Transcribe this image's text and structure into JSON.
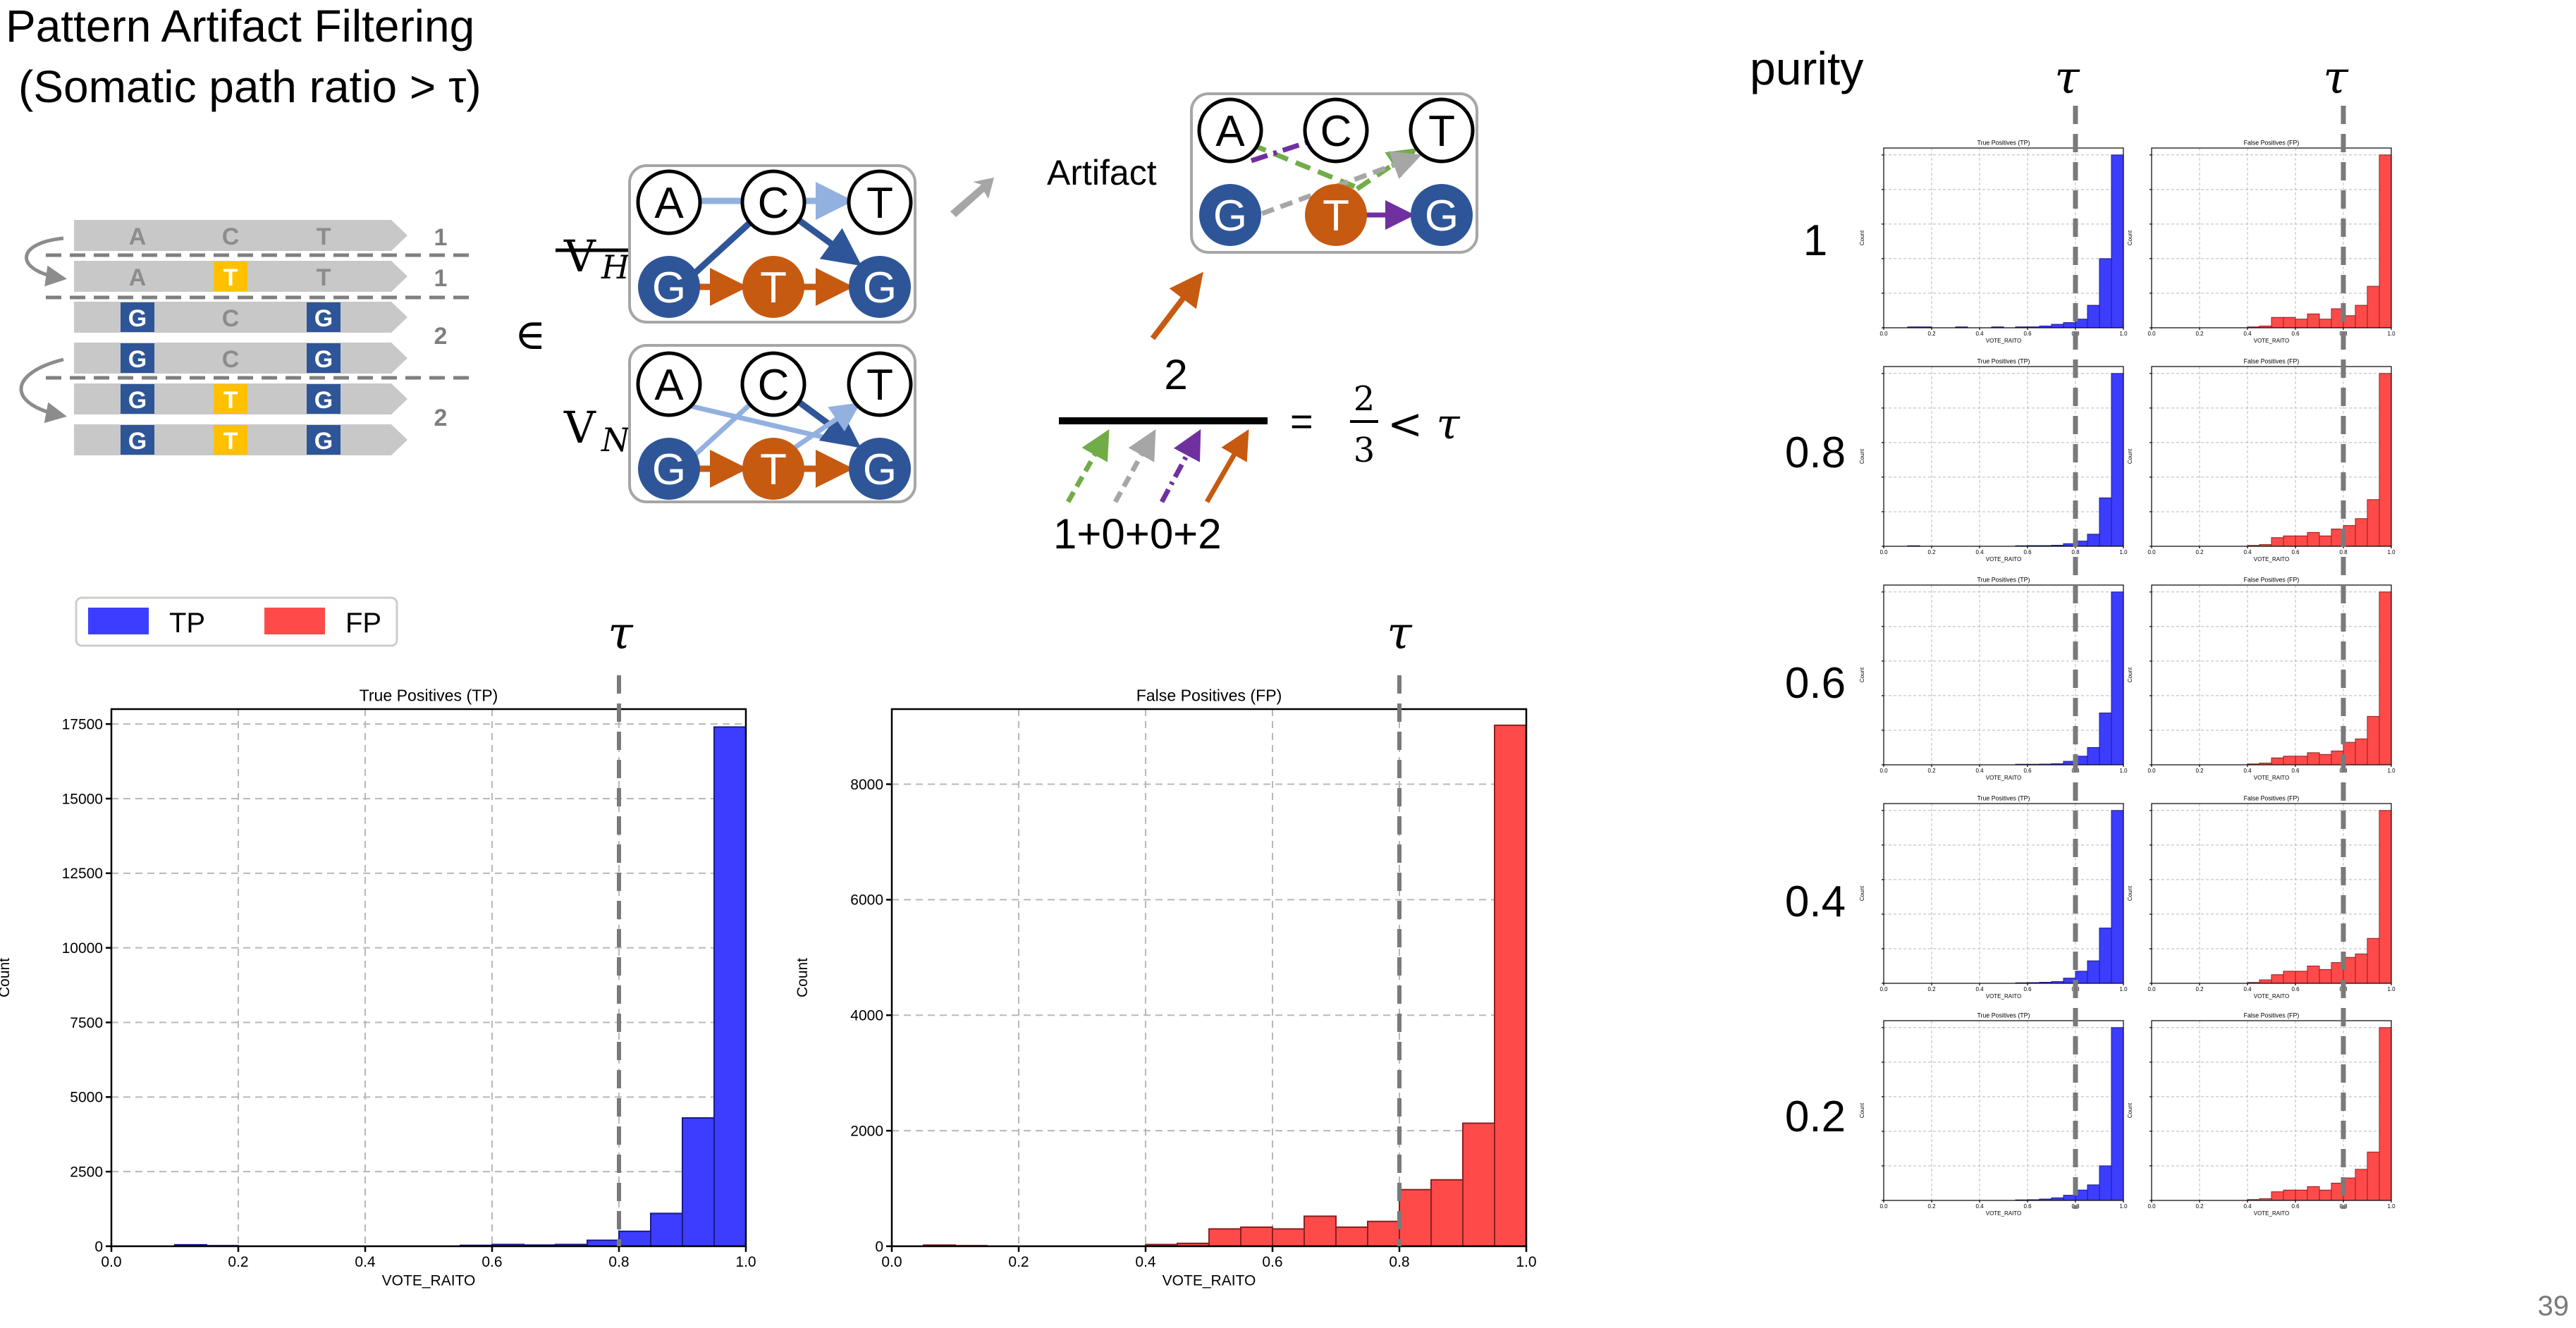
{
  "slide": {
    "title_line1": "Pattern Artifact Filtering",
    "title_line2": "(Somatic path ratio > τ)",
    "slide_number": "39"
  },
  "reads": {
    "rows": [
      {
        "cells": [
          "A",
          "C",
          "T"
        ],
        "highlight": [
          false,
          false,
          false
        ],
        "blue": [
          false,
          false,
          false
        ],
        "count": "1"
      },
      {
        "cells": [
          "A",
          "T",
          "T"
        ],
        "highlight": [
          false,
          true,
          false
        ],
        "blue": [
          false,
          false,
          false
        ],
        "count": "1"
      },
      {
        "cells": [
          "G",
          "C",
          "G"
        ],
        "highlight": [
          false,
          false,
          false
        ],
        "blue": [
          true,
          false,
          true
        ],
        "count": "2"
      },
      {
        "cells": [
          "G",
          "C",
          "G"
        ],
        "highlight": [
          false,
          false,
          false
        ],
        "blue": [
          true,
          false,
          true
        ],
        "count": ""
      },
      {
        "cells": [
          "G",
          "T",
          "G"
        ],
        "highlight": [
          false,
          true,
          false
        ],
        "blue": [
          true,
          false,
          true
        ],
        "count": "2"
      },
      {
        "cells": [
          "G",
          "T",
          "G"
        ],
        "highlight": [
          false,
          true,
          false
        ],
        "blue": [
          true,
          false,
          true
        ],
        "count": ""
      }
    ]
  },
  "graphs": {
    "element_of": "∈",
    "vh_label": "V",
    "vh_sub": "H",
    "vn_label": "V",
    "vn_sub": "N",
    "top_nodes": [
      "A",
      "C",
      "T"
    ],
    "bottom_nodes": [
      "G",
      "T",
      "G"
    ],
    "artifact_label": "Artifact",
    "artifact_top": [
      "A",
      "C",
      "T"
    ],
    "artifact_bottom": [
      "G",
      "T",
      "G"
    ],
    "numerator": "2",
    "denominator": "1+0+0+2",
    "equals": "=",
    "frac_num": "2",
    "frac_den": "3",
    "less_tau": "< τ"
  },
  "colors": {
    "tp": "#3d3dff",
    "fp": "#ff4a4a",
    "node_blue": "#2e5597",
    "node_orange": "#c65a11",
    "light_blue": "#93b1df",
    "green": "#70ad47",
    "gray": "#a6a6a6",
    "purple": "#7030a0",
    "yellow": "#ffc000"
  },
  "legend": {
    "tp": "TP",
    "fp": "FP"
  },
  "tau_symbol": "τ",
  "chart_data": [
    {
      "type": "bar",
      "title": "True Positives (TP)",
      "xlabel": "VOTE_RAITO",
      "ylabel": "Count",
      "bin_edges": [
        0,
        0.05,
        0.1,
        0.15,
        0.2,
        0.25,
        0.3,
        0.35,
        0.4,
        0.45,
        0.5,
        0.55,
        0.6,
        0.65,
        0.7,
        0.75,
        0.8,
        0.85,
        0.9,
        0.95,
        1.0
      ],
      "values": [
        0,
        0,
        50,
        20,
        0,
        0,
        0,
        0,
        0,
        0,
        0,
        30,
        60,
        40,
        60,
        200,
        500,
        1100,
        4300,
        17400
      ],
      "xlim": [
        0,
        1
      ],
      "ylim": [
        0,
        18000
      ],
      "xticks": [
        "0.0",
        "0.2",
        "0.4",
        "0.6",
        "0.8",
        "1.0"
      ],
      "yticks": [
        "0",
        "2500",
        "5000",
        "7500",
        "10000",
        "12500",
        "15000",
        "17500"
      ],
      "threshold": 0.8,
      "grid": true
    },
    {
      "type": "bar",
      "title": "False Positives (FP)",
      "xlabel": "VOTE_RAITO",
      "ylabel": "Count",
      "bin_edges": [
        0,
        0.05,
        0.1,
        0.15,
        0.2,
        0.25,
        0.3,
        0.35,
        0.4,
        0.45,
        0.5,
        0.55,
        0.6,
        0.65,
        0.7,
        0.75,
        0.8,
        0.85,
        0.9,
        0.95,
        1.0
      ],
      "values": [
        0,
        20,
        10,
        0,
        0,
        0,
        0,
        0,
        30,
        50,
        300,
        330,
        300,
        520,
        330,
        430,
        980,
        1150,
        2130,
        9020
      ],
      "xlim": [
        0,
        1
      ],
      "ylim": [
        0,
        9300
      ],
      "xticks": [
        "0.0",
        "0.2",
        "0.4",
        "0.6",
        "0.8",
        "1.0"
      ],
      "yticks": [
        "0",
        "2000",
        "4000",
        "6000",
        "8000"
      ],
      "threshold": 0.8,
      "grid": true
    }
  ],
  "purity_grid": {
    "header": "purity",
    "rows": [
      "1",
      "0.8",
      "0.6",
      "0.4",
      "0.2"
    ],
    "tp_title": "True Positives (TP)",
    "fp_title": "False Positives (FP)",
    "tp_profiles": [
      [
        0,
        0,
        0.005,
        0.005,
        0,
        0,
        0.005,
        0,
        0,
        0.005,
        0,
        0.005,
        0.005,
        0.01,
        0.02,
        0.03,
        0.05,
        0.13,
        0.4,
        1.0
      ],
      [
        0,
        0,
        0.003,
        0,
        0,
        0,
        0,
        0,
        0,
        0,
        0,
        0.003,
        0.004,
        0.004,
        0.006,
        0.015,
        0.03,
        0.07,
        0.28,
        1.0
      ],
      [
        0,
        0,
        0,
        0,
        0,
        0,
        0,
        0,
        0,
        0,
        0,
        0.003,
        0.003,
        0.004,
        0.006,
        0.02,
        0.05,
        0.1,
        0.3,
        1.0
      ],
      [
        0,
        0,
        0,
        0,
        0,
        0,
        0,
        0,
        0,
        0,
        0,
        0.003,
        0.004,
        0.006,
        0.01,
        0.03,
        0.07,
        0.13,
        0.32,
        1.0
      ],
      [
        0,
        0,
        0,
        0,
        0,
        0,
        0,
        0,
        0,
        0,
        0,
        0.003,
        0.004,
        0.008,
        0.015,
        0.03,
        0.06,
        0.09,
        0.2,
        1.0
      ]
    ],
    "fp_profiles": [
      [
        0,
        0,
        0,
        0,
        0,
        0,
        0,
        0,
        0.005,
        0.01,
        0.06,
        0.06,
        0.05,
        0.08,
        0.05,
        0.11,
        0.07,
        0.13,
        0.24,
        1.0
      ],
      [
        0,
        0,
        0,
        0,
        0,
        0,
        0,
        0,
        0.005,
        0.01,
        0.05,
        0.06,
        0.06,
        0.08,
        0.06,
        0.1,
        0.12,
        0.16,
        0.27,
        1.0
      ],
      [
        0,
        0,
        0,
        0,
        0,
        0,
        0,
        0,
        0.005,
        0.01,
        0.04,
        0.05,
        0.05,
        0.07,
        0.06,
        0.08,
        0.13,
        0.15,
        0.28,
        1.0
      ],
      [
        0,
        0,
        0,
        0,
        0,
        0,
        0,
        0,
        0.005,
        0.02,
        0.05,
        0.07,
        0.07,
        0.1,
        0.08,
        0.12,
        0.15,
        0.17,
        0.26,
        1.0
      ],
      [
        0,
        0,
        0,
        0,
        0,
        0,
        0,
        0,
        0.005,
        0.01,
        0.05,
        0.06,
        0.06,
        0.08,
        0.06,
        0.1,
        0.13,
        0.18,
        0.28,
        1.0
      ]
    ]
  }
}
